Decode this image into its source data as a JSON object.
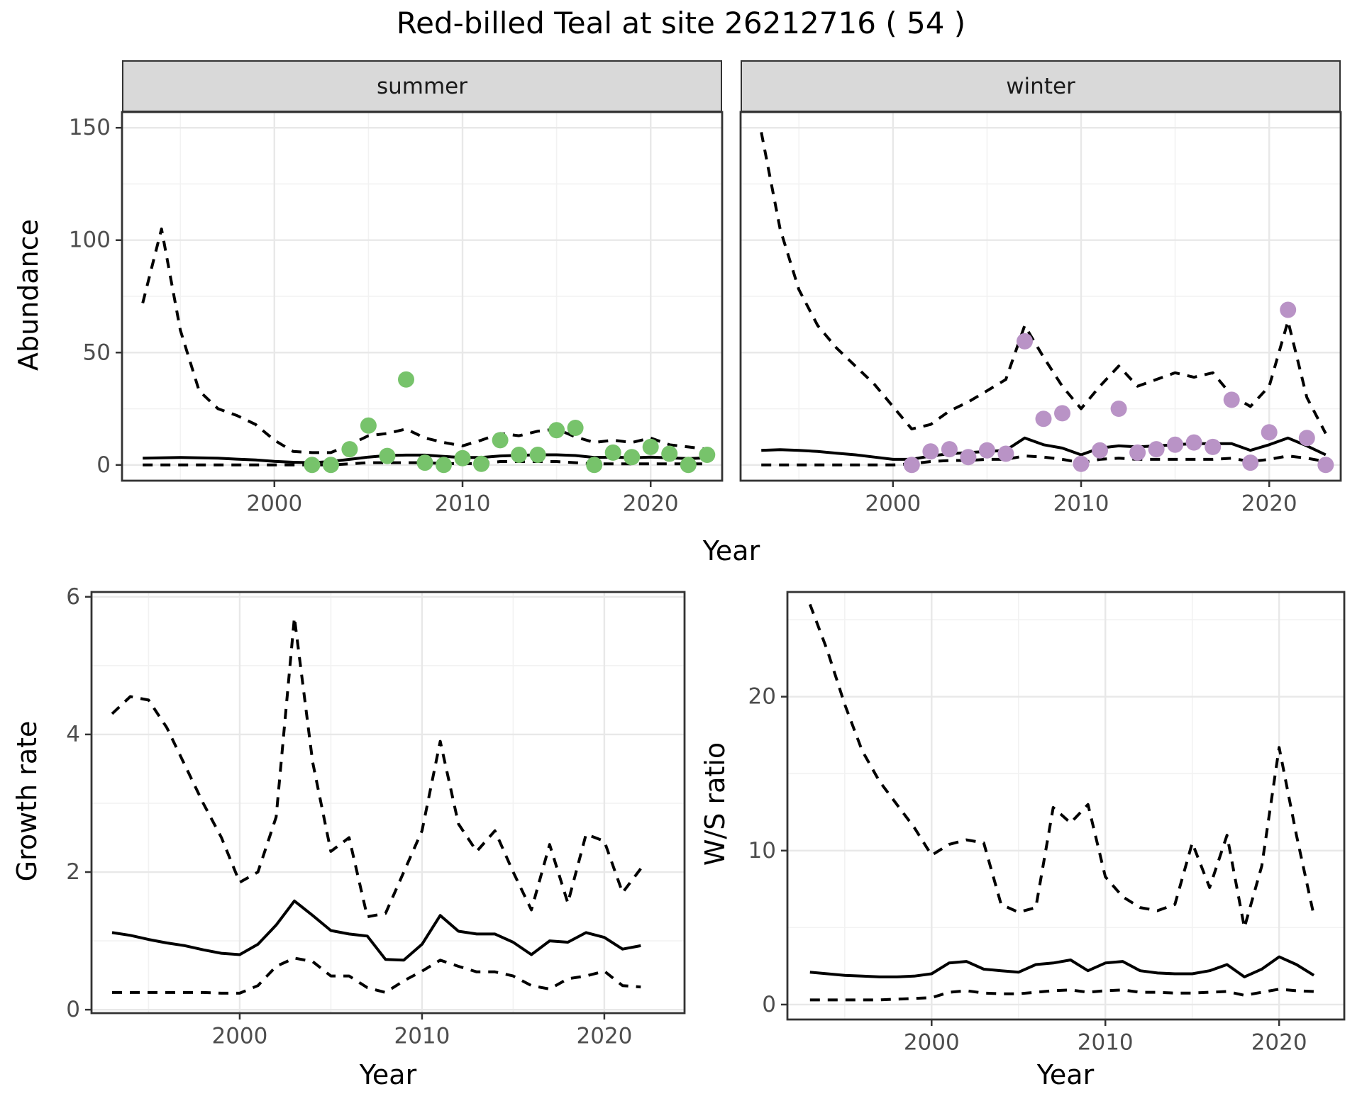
{
  "title": "Red-billed Teal at site 26212716 ( 54 )",
  "facet_labels": {
    "summer": "summer",
    "winter": "winter"
  },
  "axis_titles": {
    "abundance": "Abundance",
    "year": "Year",
    "growth_rate": "Growth rate",
    "ws_ratio": "W/S ratio"
  },
  "colors": {
    "summer_points": "#77c36b",
    "winter_points": "#b993c6",
    "line": "#000000",
    "strip_bg": "#d9d9d9",
    "panel_border": "#333333",
    "grid_major": "#e8e8e8",
    "grid_minor": "#f2f2f2",
    "tick_text": "#4d4d4d"
  },
  "chart_data": [
    {
      "id": "abundance_summer",
      "type": "line",
      "facet": "summer",
      "x_label": "Year",
      "y_label": "Abundance",
      "x_range": [
        1991.9,
        2023.8
      ],
      "y_range": [
        -7,
        157
      ],
      "x_ticks": [
        2000,
        2010,
        2020
      ],
      "x_minor_ticks": [
        1995,
        2005,
        2015
      ],
      "y_ticks": [
        0,
        50,
        100,
        150
      ],
      "y_minor_ticks": [
        25,
        75,
        125
      ],
      "show_y_tick_labels": true,
      "years": [
        1993,
        1994,
        1995,
        1996,
        1997,
        1998,
        1999,
        2000,
        2001,
        2002,
        2003,
        2004,
        2005,
        2006,
        2007,
        2008,
        2009,
        2010,
        2011,
        2012,
        2013,
        2014,
        2015,
        2016,
        2017,
        2018,
        2019,
        2020,
        2021,
        2022,
        2023
      ],
      "series": [
        {
          "name": "upper_95ci",
          "style": "dashed",
          "values": [
            72,
            105,
            60,
            33,
            25,
            22,
            18,
            11,
            6,
            5.5,
            5.5,
            9,
            13,
            14,
            16,
            12,
            10,
            8.5,
            11,
            14,
            13,
            15,
            16,
            12.5,
            10,
            11,
            10,
            12,
            9,
            8,
            7
          ]
        },
        {
          "name": "median",
          "style": "solid",
          "values": [
            3,
            3.2,
            3.3,
            3.2,
            3,
            2.6,
            2.2,
            1.6,
            1.2,
            1,
            1.5,
            2.5,
            3.5,
            4.2,
            4.4,
            4.4,
            3.8,
            3.3,
            3.3,
            4,
            4.3,
            4.5,
            4.5,
            4.2,
            3.3,
            3.5,
            3.2,
            3.5,
            3.2,
            2.8,
            3.2
          ]
        },
        {
          "name": "lower_95ci",
          "style": "dashed",
          "values": [
            0,
            0,
            0,
            0,
            0,
            0,
            0,
            0,
            0,
            0,
            0,
            0.5,
            1,
            1,
            1,
            1,
            0.6,
            0.6,
            0.6,
            1.5,
            1.5,
            1.5,
            1.5,
            1,
            0.5,
            0.5,
            0.5,
            0.5,
            0.5,
            0.5,
            0.5
          ]
        }
      ],
      "points": {
        "name": "observed_count",
        "color": "#77c36b",
        "years": [
          2002,
          2003,
          2004,
          2005,
          2006,
          2007,
          2008,
          2009,
          2010,
          2011,
          2012,
          2013,
          2014,
          2015,
          2016,
          2017,
          2018,
          2019,
          2020,
          2021,
          2022,
          2023
        ],
        "values": [
          0,
          0,
          7,
          17.5,
          4,
          38,
          1,
          0,
          3,
          0.5,
          11,
          4.5,
          4.5,
          15.5,
          16.5,
          0,
          5.5,
          3.5,
          8,
          5,
          0,
          4.5
        ]
      }
    },
    {
      "id": "abundance_winter",
      "type": "line",
      "facet": "winter",
      "x_label": "Year",
      "y_label": "Abundance",
      "x_range": [
        1991.9,
        2023.8
      ],
      "y_range": [
        -7,
        157
      ],
      "x_ticks": [
        2000,
        2010,
        2020
      ],
      "x_minor_ticks": [
        1995,
        2005,
        2015
      ],
      "y_ticks": [
        0,
        50,
        100,
        150
      ],
      "y_minor_ticks": [
        25,
        75,
        125
      ],
      "show_y_tick_labels": false,
      "years": [
        1993,
        1994,
        1995,
        1996,
        1997,
        1998,
        1999,
        2000,
        2001,
        2002,
        2003,
        2004,
        2005,
        2006,
        2007,
        2008,
        2009,
        2010,
        2011,
        2012,
        2013,
        2014,
        2015,
        2016,
        2017,
        2018,
        2019,
        2020,
        2021,
        2022,
        2023
      ],
      "series": [
        {
          "name": "upper_95ci",
          "style": "dashed",
          "values": [
            148,
            105,
            78,
            62,
            52,
            44,
            36,
            26,
            16,
            18,
            24,
            28,
            33,
            38,
            62,
            48,
            35,
            25,
            35,
            44,
            35,
            38,
            41,
            39,
            41,
            31,
            26,
            35,
            64,
            30,
            14
          ]
        },
        {
          "name": "median",
          "style": "solid",
          "values": [
            6.5,
            6.8,
            6.5,
            6,
            5.2,
            4.5,
            3.5,
            2.5,
            2.5,
            4,
            5,
            5.5,
            6,
            6.5,
            12,
            9,
            7.5,
            4.5,
            7.5,
            8.5,
            8,
            8.5,
            9,
            9.5,
            9.5,
            9.5,
            6.5,
            9,
            12,
            8.5,
            4.5
          ]
        },
        {
          "name": "lower_95ci",
          "style": "dashed",
          "values": [
            0,
            0,
            0,
            0,
            0,
            0,
            0,
            0,
            0.5,
            1.5,
            2,
            2,
            2.5,
            2.5,
            4,
            3.5,
            2.5,
            1,
            2.5,
            3,
            2.5,
            2.5,
            2.5,
            2.5,
            2.5,
            3,
            1.5,
            2.5,
            4,
            3,
            1.5
          ]
        }
      ],
      "points": {
        "name": "observed_count",
        "color": "#b993c6",
        "years": [
          2001,
          2002,
          2003,
          2004,
          2005,
          2006,
          2007,
          2008,
          2009,
          2010,
          2011,
          2012,
          2013,
          2014,
          2015,
          2016,
          2017,
          2018,
          2019,
          2020,
          2021,
          2022,
          2023
        ],
        "values": [
          0,
          6,
          7,
          3.5,
          6.5,
          5,
          55,
          20.5,
          23,
          0.5,
          6.5,
          25,
          5.5,
          7,
          9,
          10,
          8,
          29,
          1,
          14.5,
          69,
          12,
          0
        ]
      }
    },
    {
      "id": "growth_rate",
      "type": "line",
      "facet": null,
      "x_label": "Year",
      "y_label": "Growth rate",
      "x_range": [
        1991.87,
        2024.4
      ],
      "y_range": [
        -0.05,
        6.07
      ],
      "x_ticks": [
        2000,
        2010,
        2020
      ],
      "x_minor_ticks": [
        1995,
        2005,
        2015
      ],
      "y_ticks": [
        0,
        2,
        4,
        6
      ],
      "y_minor_ticks": [
        1,
        3,
        5
      ],
      "show_y_tick_labels": true,
      "years": [
        1993,
        1994,
        1995,
        1996,
        1997,
        1998,
        1999,
        2000,
        2001,
        2002,
        2003,
        2004,
        2005,
        2006,
        2007,
        2008,
        2009,
        2010,
        2011,
        2012,
        2013,
        2014,
        2015,
        2016,
        2017,
        2018,
        2019,
        2020,
        2021,
        2022
      ],
      "series": [
        {
          "name": "upper_95ci",
          "style": "dashed",
          "values": [
            4.3,
            4.55,
            4.5,
            4.1,
            3.55,
            3.0,
            2.5,
            1.85,
            2.0,
            2.8,
            5.7,
            3.6,
            2.3,
            2.5,
            1.35,
            1.4,
            2.0,
            2.6,
            3.9,
            2.7,
            2.3,
            2.6,
            2.0,
            1.45,
            2.4,
            1.55,
            2.55,
            2.45,
            1.7,
            2.05
          ]
        },
        {
          "name": "median",
          "style": "solid",
          "values": [
            1.12,
            1.08,
            1.02,
            0.97,
            0.93,
            0.87,
            0.82,
            0.8,
            0.95,
            1.23,
            1.58,
            1.37,
            1.15,
            1.1,
            1.07,
            0.73,
            0.72,
            0.95,
            1.37,
            1.14,
            1.1,
            1.1,
            0.98,
            0.8,
            1.0,
            0.98,
            1.12,
            1.05,
            0.88,
            0.93
          ]
        },
        {
          "name": "lower_95ci",
          "style": "dashed",
          "values": [
            0.25,
            0.25,
            0.25,
            0.25,
            0.25,
            0.25,
            0.24,
            0.24,
            0.35,
            0.63,
            0.75,
            0.7,
            0.49,
            0.49,
            0.32,
            0.25,
            0.42,
            0.56,
            0.72,
            0.63,
            0.55,
            0.55,
            0.49,
            0.35,
            0.3,
            0.45,
            0.49,
            0.56,
            0.35,
            0.33
          ]
        }
      ],
      "points": null
    },
    {
      "id": "ws_ratio",
      "type": "line",
      "facet": null,
      "x_label": "Year",
      "y_label": "W/S ratio",
      "x_range": [
        1991.7,
        2023.75
      ],
      "y_range": [
        -0.97,
        26.8
      ],
      "x_ticks": [
        2000,
        2010,
        2020
      ],
      "x_minor_ticks": [
        1995,
        2005,
        2015
      ],
      "y_ticks": [
        0,
        10,
        20
      ],
      "y_minor_ticks": [
        5,
        15,
        25
      ],
      "show_y_tick_labels": true,
      "years": [
        1993,
        1994,
        1995,
        1996,
        1997,
        1998,
        1999,
        2000,
        2001,
        2002,
        2003,
        2004,
        2005,
        2006,
        2007,
        2008,
        2009,
        2010,
        2011,
        2012,
        2013,
        2014,
        2015,
        2016,
        2017,
        2018,
        2019,
        2020,
        2021,
        2022
      ],
      "series": [
        {
          "name": "upper_95ci",
          "style": "dashed",
          "values": [
            26,
            23,
            19.5,
            16.5,
            14.5,
            13,
            11.5,
            9.7,
            10.4,
            10.7,
            10.5,
            6.5,
            6.0,
            6.3,
            12.8,
            11.8,
            13.0,
            8.3,
            7.0,
            6.3,
            6.1,
            6.5,
            10.5,
            7.6,
            11.0,
            5.0,
            9.0,
            16.7,
            11.0,
            5.8
          ]
        },
        {
          "name": "median",
          "style": "solid",
          "values": [
            2.1,
            2.0,
            1.9,
            1.85,
            1.8,
            1.8,
            1.85,
            2.0,
            2.7,
            2.8,
            2.3,
            2.2,
            2.1,
            2.6,
            2.7,
            2.9,
            2.2,
            2.7,
            2.8,
            2.2,
            2.05,
            2.0,
            2.0,
            2.2,
            2.6,
            1.8,
            2.3,
            3.1,
            2.6,
            1.9
          ]
        },
        {
          "name": "lower_95ci",
          "style": "dashed",
          "values": [
            0.3,
            0.3,
            0.3,
            0.3,
            0.3,
            0.35,
            0.4,
            0.45,
            0.8,
            0.9,
            0.75,
            0.7,
            0.7,
            0.8,
            0.9,
            0.95,
            0.8,
            0.9,
            0.95,
            0.8,
            0.8,
            0.75,
            0.75,
            0.8,
            0.85,
            0.6,
            0.8,
            1.0,
            0.9,
            0.85
          ]
        }
      ],
      "points": null
    }
  ]
}
